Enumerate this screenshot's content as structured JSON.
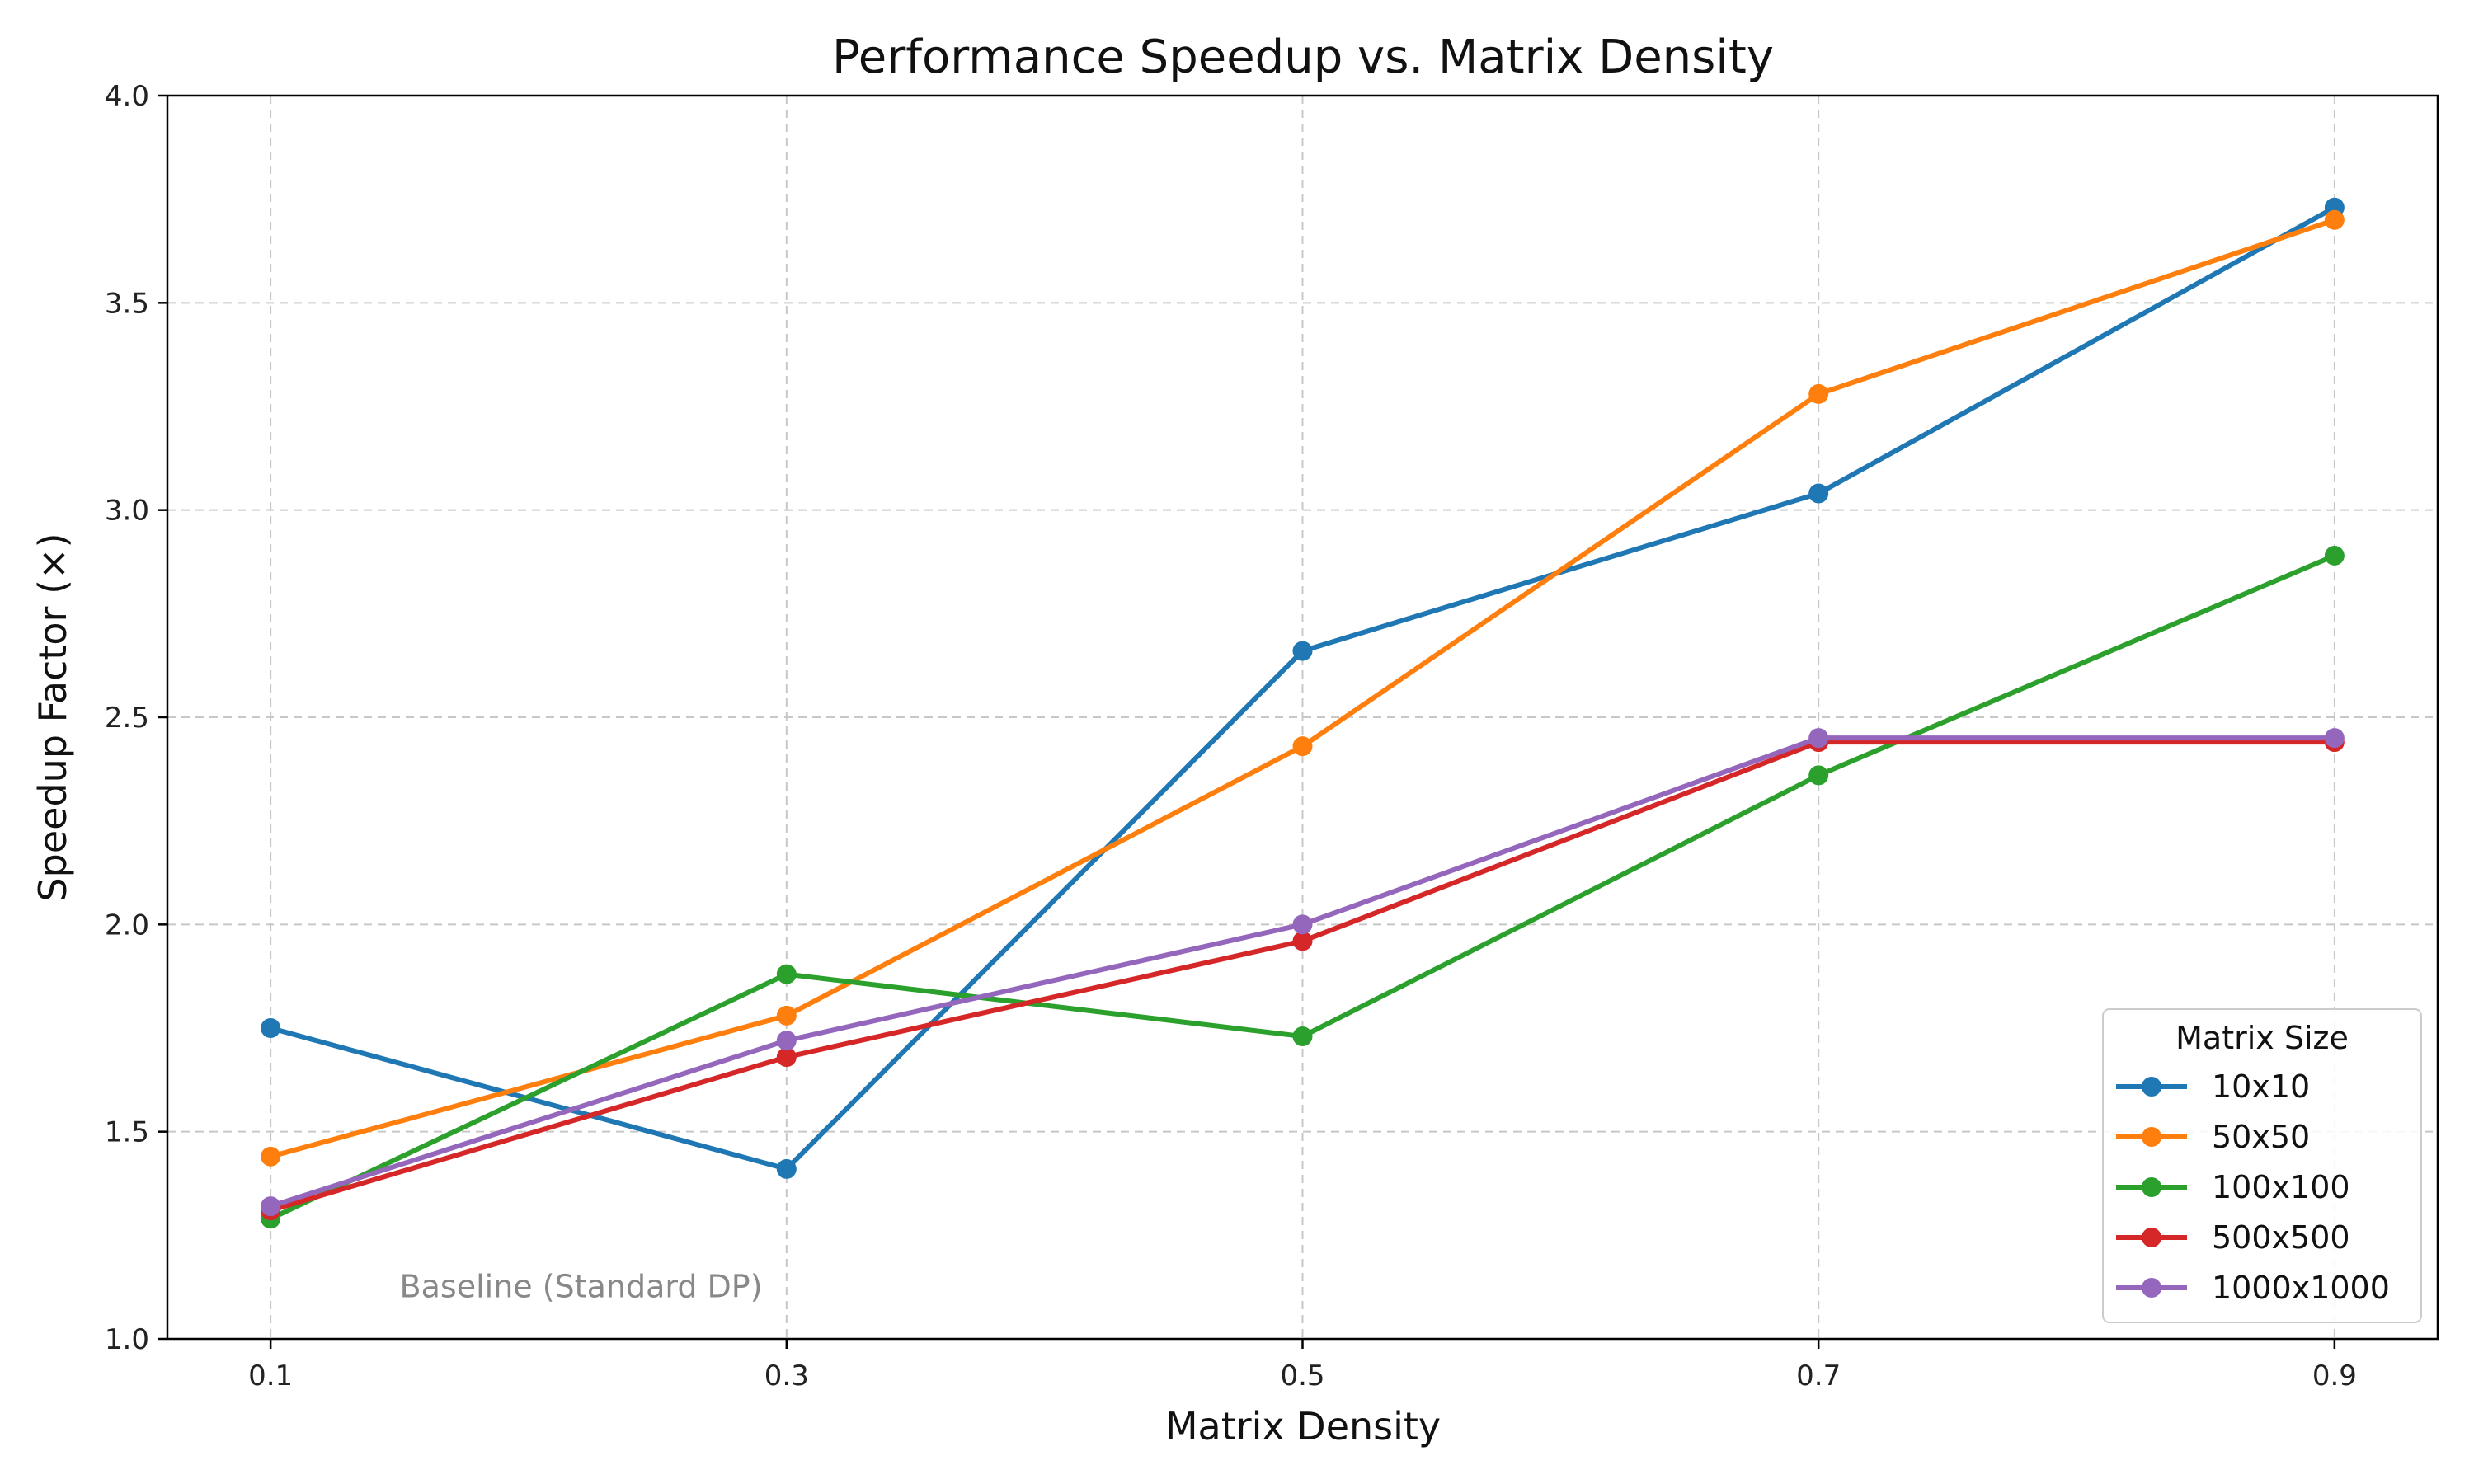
{
  "chart_data": {
    "type": "line",
    "title": "Performance Speedup vs. Matrix Density",
    "xlabel": "Matrix Density",
    "ylabel": "Speedup Factor (×)",
    "x": [
      0.1,
      0.3,
      0.5,
      0.7,
      0.9
    ],
    "x_tick_labels": [
      "0.1",
      "0.3",
      "0.5",
      "0.7",
      "0.9"
    ],
    "xlim": [
      0.06,
      0.94
    ],
    "ylim": [
      1.0,
      4.0
    ],
    "y_ticks": [
      1.0,
      1.5,
      2.0,
      2.5,
      3.0,
      3.5,
      4.0
    ],
    "y_tick_labels": [
      "1.0",
      "1.5",
      "2.0",
      "2.5",
      "3.0",
      "3.5",
      "4.0"
    ],
    "grid": true,
    "legend": {
      "title": "Matrix Size",
      "location": "lower-right"
    },
    "annotation": {
      "text": "Baseline (Standard DP)",
      "x": 0.15,
      "y": 1.12
    },
    "series": [
      {
        "name": "10x10",
        "color": "#1f77b4",
        "values": [
          1.75,
          1.41,
          2.66,
          3.04,
          3.73
        ]
      },
      {
        "name": "50x50",
        "color": "#ff7f0e",
        "values": [
          1.44,
          1.78,
          2.43,
          3.28,
          3.7
        ]
      },
      {
        "name": "100x100",
        "color": "#2ca02c",
        "values": [
          1.29,
          1.88,
          1.73,
          2.36,
          2.89
        ]
      },
      {
        "name": "500x500",
        "color": "#d62728",
        "values": [
          1.31,
          1.68,
          1.96,
          2.44,
          2.44
        ]
      },
      {
        "name": "1000x1000",
        "color": "#9467bd",
        "values": [
          1.32,
          1.72,
          2.0,
          2.45,
          2.45
        ]
      }
    ]
  }
}
